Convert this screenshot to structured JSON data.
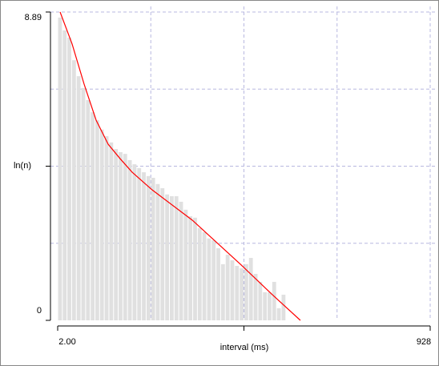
{
  "chart_data": {
    "type": "histogram",
    "x_label": "interval (ms)",
    "y_label": "ln(n)",
    "bins": [
      2,
      13.575,
      25.15,
      36.725,
      48.3,
      59.875,
      71.45,
      83.025,
      94.6,
      106.175,
      117.75,
      129.325,
      140.9,
      152.475,
      164.05,
      175.625,
      187.2,
      198.775,
      210.35,
      221.925,
      233.5,
      245.075,
      256.65,
      268.225,
      279.8,
      291.375,
      302.95,
      314.525,
      326.1,
      337.675,
      349.25,
      360.825,
      372.4,
      383.975,
      395.55,
      407.125,
      418.7,
      430.275,
      441.85,
      453.425,
      465,
      476.575,
      488.15,
      499.725,
      511.3,
      522.875,
      534.45,
      546.025,
      557.6,
      569.175
    ],
    "values": [
      8.73,
      8.36,
      8.15,
      7.5,
      7.04,
      6.7,
      6.35,
      6.0,
      5.77,
      5.5,
      5.31,
      5.13,
      4.94,
      4.85,
      4.8,
      4.62,
      4.5,
      4.39,
      4.27,
      4.16,
      4.11,
      3.93,
      3.81,
      3.63,
      3.58,
      3.58,
      3.42,
      3.19,
      3.0,
      2.96,
      2.66,
      2.54,
      2.36,
      2.31,
      2.08,
      1.62,
      1.89,
      1.73,
      1.57,
      1.5,
      1.62,
      1.8,
      1.34,
      1.11,
      0.81,
      0.81,
      1.11,
      0.35,
      0.74
    ],
    "color": "#e0e0e0",
    "fit": {
      "color": "#ff0000",
      "x": [
        8.0,
        37.8,
        67.7,
        97.6,
        127.4,
        157.3,
        187.2,
        237.0,
        336.5,
        456.0,
        535.6,
        605.3
      ],
      "y": [
        8.89,
        7.97,
        6.81,
        5.77,
        5.08,
        4.66,
        4.27,
        3.76,
        2.89,
        1.62,
        0.74,
        0
      ]
    },
    "xlim": [
      2,
      928
    ],
    "xticks": [
      {
        "value": 2,
        "label": "2.00"
      },
      928
    ],
    "ylim": [
      0,
      8.89
    ],
    "yticks": [
      0,
      8.89
    ],
    "grid": true
  }
}
